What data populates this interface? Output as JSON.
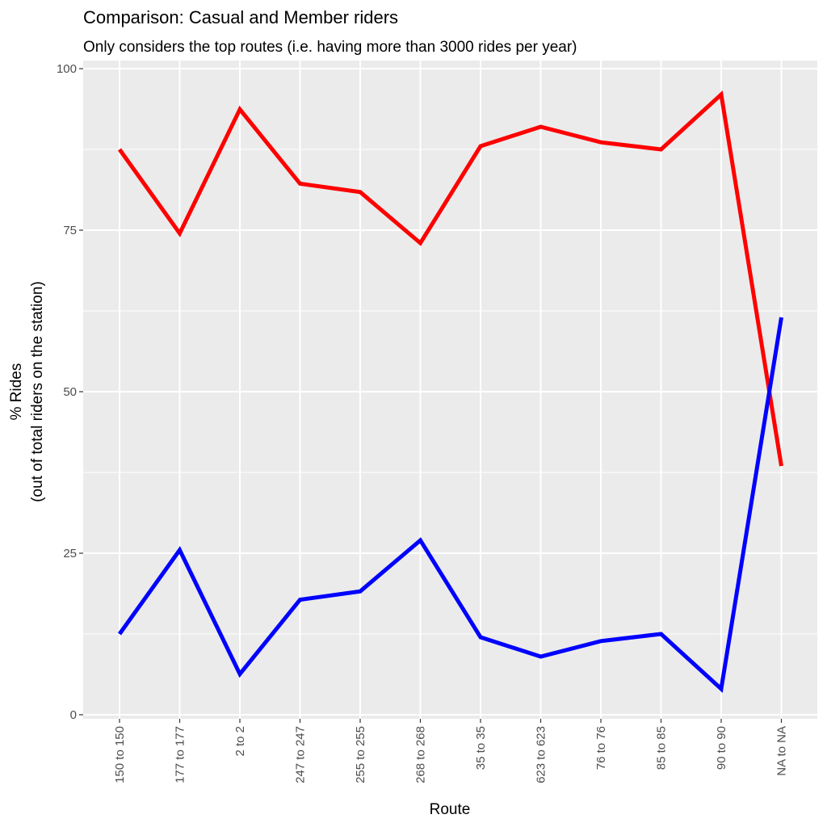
{
  "chart_data": {
    "type": "line",
    "title": "Comparison: Casual and Member riders",
    "subtitle": "Only considers the top routes (i.e. having more than 3000 rides per year)",
    "xlabel": "Route",
    "ylabel_line1": "% Rides",
    "ylabel_line2": "(out of total riders on the station)",
    "ylim": [
      0,
      100
    ],
    "yticks": [
      0,
      25,
      50,
      75,
      100
    ],
    "grid": true,
    "legend": "none",
    "categories": [
      "150 to 150",
      "177 to 177",
      "2 to 2",
      "247 to 247",
      "255 to 255",
      "268 to 268",
      "35 to 35",
      "623 to 623",
      "76 to 76",
      "85 to 85",
      "90 to 90",
      "NA to NA"
    ],
    "series": [
      {
        "name": "red series",
        "color": "#ff0000",
        "values": [
          87.5,
          74.5,
          93.7,
          82.2,
          80.9,
          73.0,
          88.0,
          91.0,
          88.6,
          87.5,
          96.0,
          38.5
        ]
      },
      {
        "name": "blue series",
        "color": "#0000ff",
        "values": [
          12.5,
          25.5,
          6.3,
          17.8,
          19.1,
          27.0,
          12.0,
          9.0,
          11.4,
          12.5,
          4.0,
          61.5
        ]
      }
    ]
  }
}
